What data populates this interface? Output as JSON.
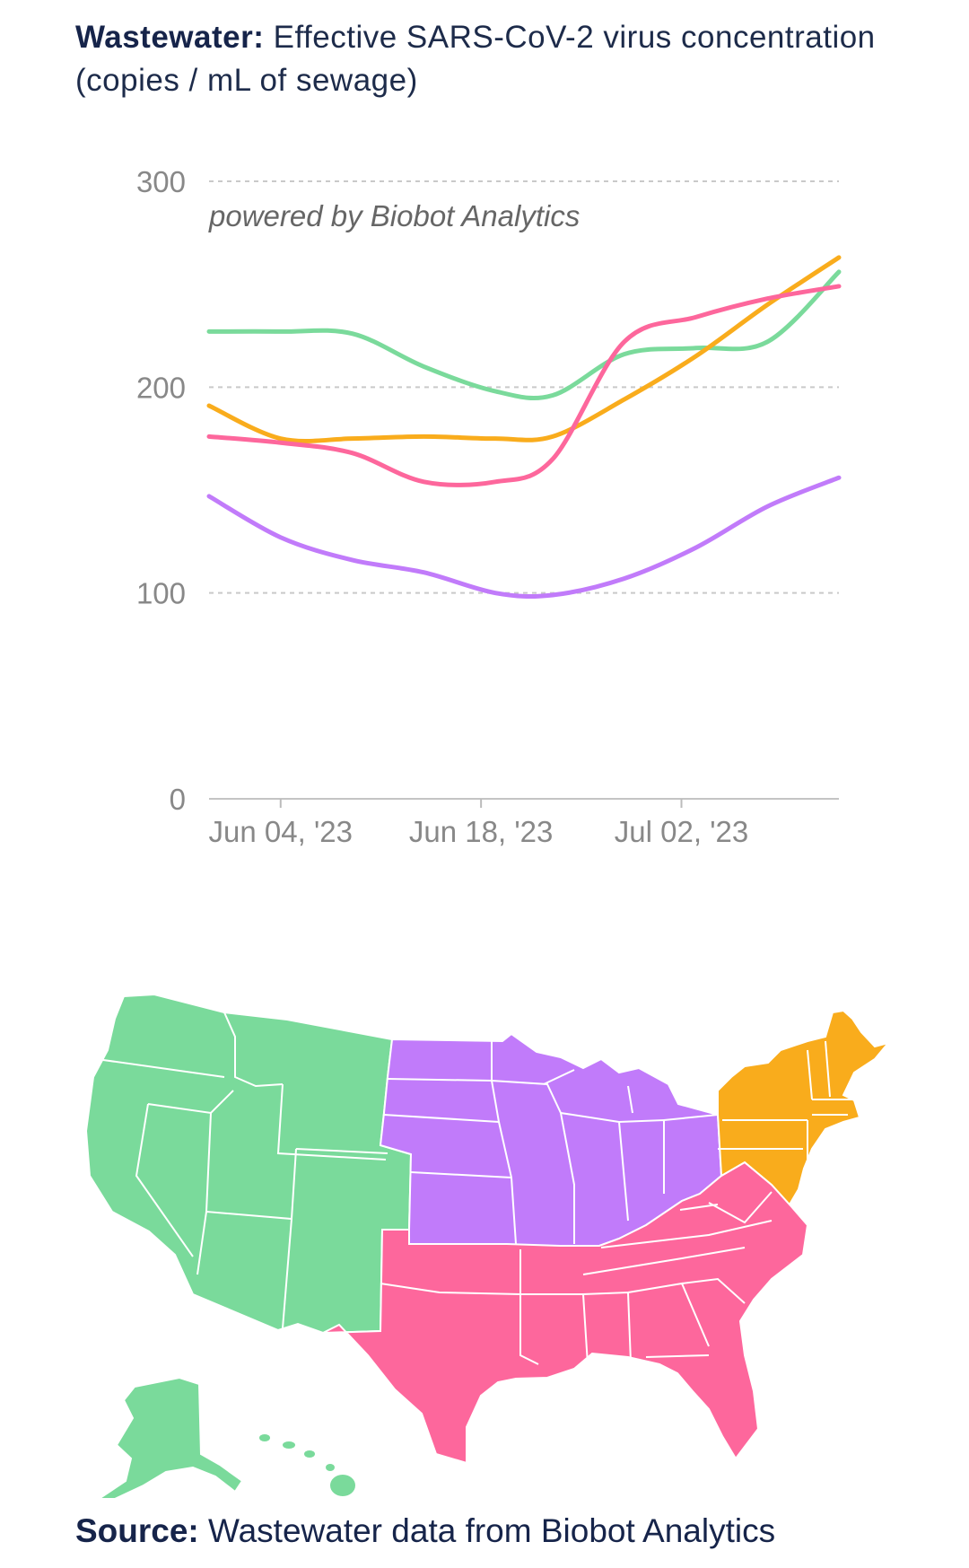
{
  "title": {
    "prefix": "Wastewater:",
    "text": "Effective SARS-CoV-2 virus concentration (copies / mL of sewage)"
  },
  "watermark": "powered by Biobot Analytics",
  "source": {
    "prefix": "Source:",
    "text": "Wastewater data from Biobot Analytics"
  },
  "colors": {
    "west": "#7ada9b",
    "midwest": "#c17bfa",
    "south": "#fd679c",
    "northeast": "#f9ac1c",
    "grid": "#c9c9c9",
    "axis_text": "#888888"
  },
  "chart_data": {
    "type": "line",
    "x": [
      "2023-05-30",
      "2023-06-04",
      "2023-06-09",
      "2023-06-14",
      "2023-06-19",
      "2023-06-23",
      "2023-06-28",
      "2023-07-03",
      "2023-07-08",
      "2023-07-13"
    ],
    "series": [
      {
        "region": "west",
        "values": [
          227,
          227,
          226,
          210,
          198,
          196,
          216,
          219,
          222,
          256
        ]
      },
      {
        "region": "northeast",
        "values": [
          191,
          175,
          175,
          176,
          175,
          176,
          194,
          215,
          240,
          263
        ]
      },
      {
        "region": "south",
        "values": [
          176,
          173,
          168,
          154,
          154,
          165,
          222,
          234,
          243,
          249
        ]
      },
      {
        "region": "midwest",
        "values": [
          147,
          127,
          116,
          110,
          100,
          99,
          107,
          122,
          142,
          156
        ]
      }
    ],
    "ylim": [
      0,
      300
    ],
    "yticks": [
      0,
      100,
      200,
      300
    ],
    "xticks": [
      "Jun 04, '23",
      "Jun 18, '23",
      "Jul 02, '23"
    ],
    "xlabel": "",
    "ylabel": "",
    "grid": true
  }
}
